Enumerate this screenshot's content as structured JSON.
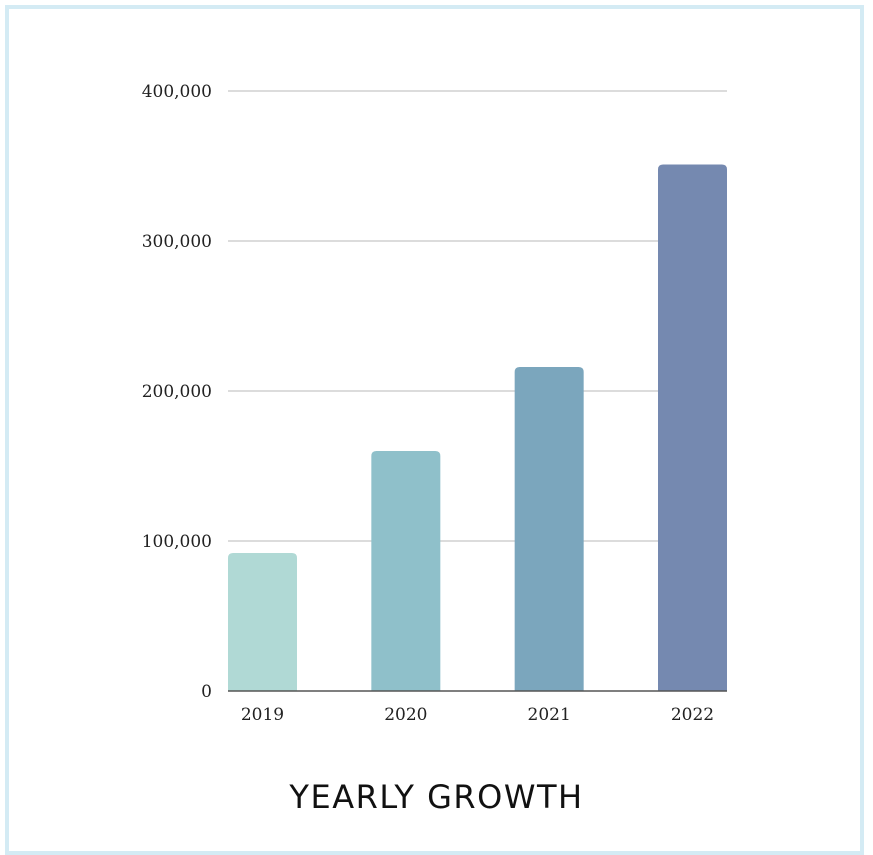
{
  "chart_data": {
    "type": "bar",
    "title": "YEARLY GROWTH",
    "xlabel": "",
    "ylabel": "",
    "categories": [
      "2019",
      "2020",
      "2021",
      "2022"
    ],
    "values": [
      92000,
      160000,
      216000,
      351000
    ],
    "ylim": [
      0,
      400000
    ],
    "yticks": [
      0,
      100000,
      200000,
      300000,
      400000
    ],
    "ytick_labels": [
      "0",
      "100,000",
      "200,000",
      "300,000",
      "400,000"
    ],
    "grid": true,
    "legend": "none",
    "colors": [
      "#b0d9d5",
      "#8fc0ca",
      "#7ba6bd",
      "#7589b0"
    ]
  },
  "style": {
    "frame_border": "#d4ebf4",
    "grid_color": "#c8c8c8",
    "axis_color": "#555555"
  }
}
